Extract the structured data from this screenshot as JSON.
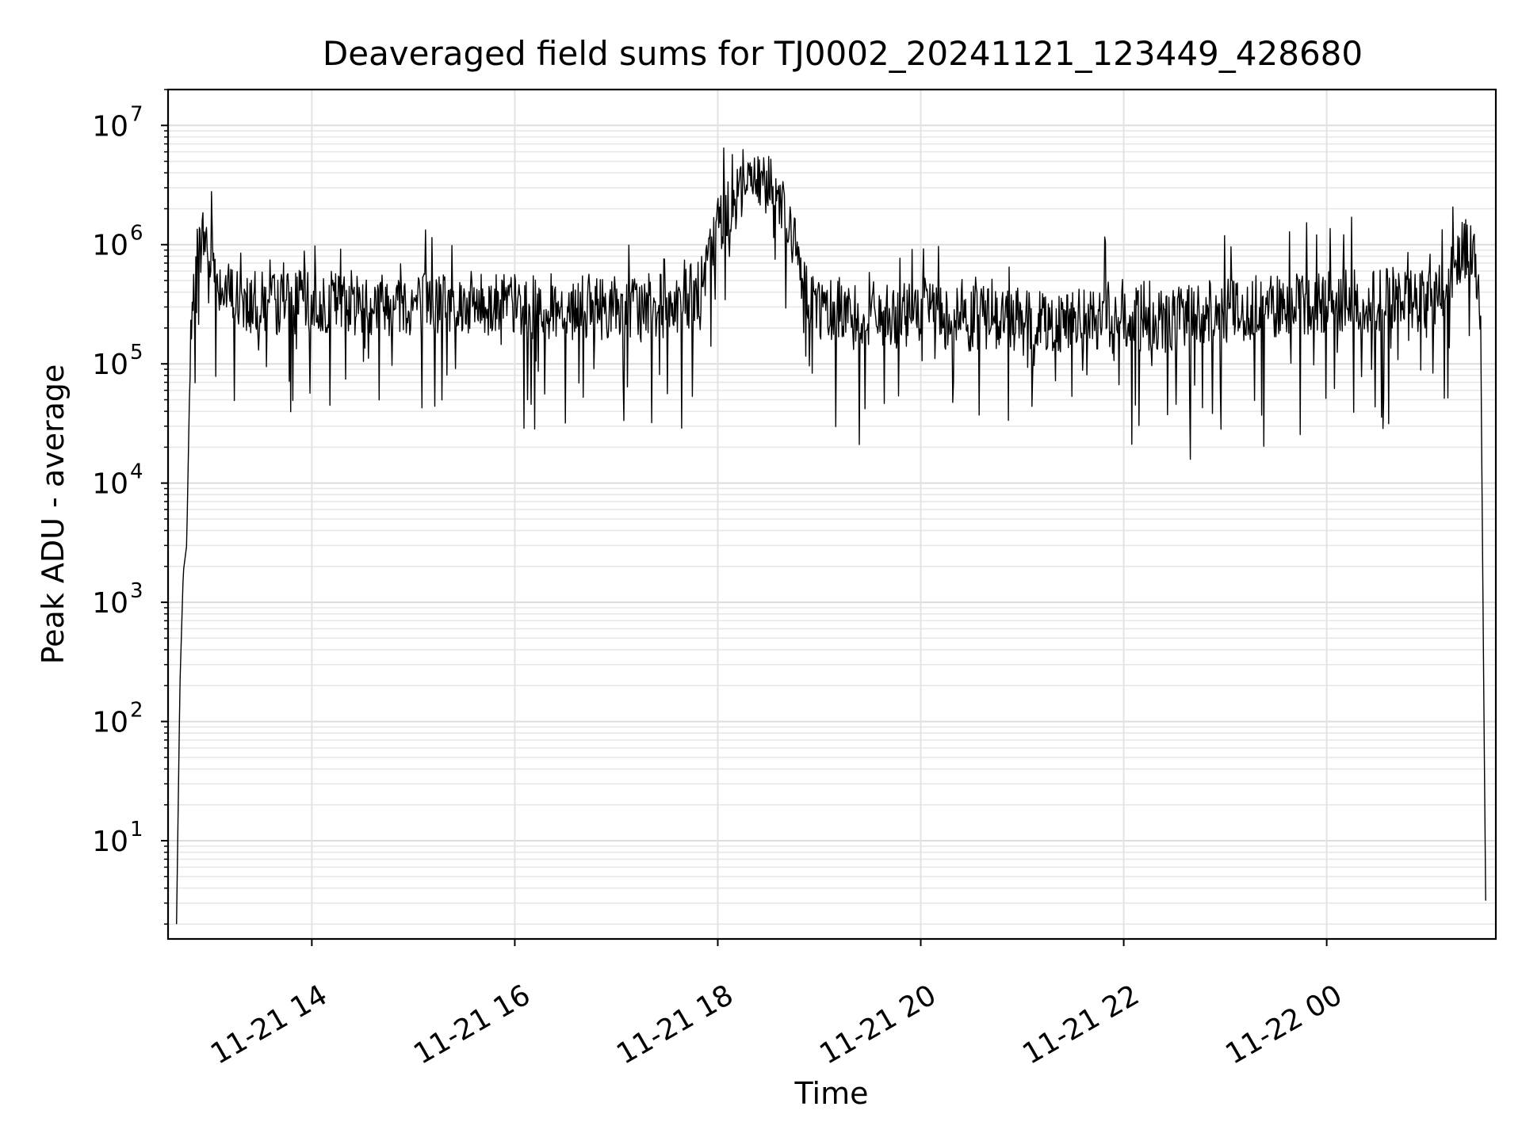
{
  "chart_data": {
    "type": "line",
    "title": "Deaveraged field sums for TJ0002_20241121_123449_428680",
    "xlabel": "Time",
    "ylabel": "Peak ADU - average",
    "yscale": "log",
    "ylim": [
      1.5,
      20000000
    ],
    "xlim": [
      "2024-11-21T12:35",
      "2024-11-22T01:40"
    ],
    "grid": true,
    "legend": "none",
    "line_color": "#000000",
    "x_ticks": [
      {
        "value": "2024-11-21T14:00",
        "label": "11-21 14"
      },
      {
        "value": "2024-11-21T16:00",
        "label": "11-21 16"
      },
      {
        "value": "2024-11-21T18:00",
        "label": "11-21 18"
      },
      {
        "value": "2024-11-21T20:00",
        "label": "11-21 20"
      },
      {
        "value": "2024-11-21T22:00",
        "label": "11-21 22"
      },
      {
        "value": "2024-11-22T00:00",
        "label": "11-22 00"
      }
    ],
    "y_ticks": [
      {
        "value": 10,
        "base": "10",
        "exp": "1"
      },
      {
        "value": 100,
        "base": "10",
        "exp": "2"
      },
      {
        "value": 1000,
        "base": "10",
        "exp": "3"
      },
      {
        "value": 10000,
        "base": "10",
        "exp": "4"
      },
      {
        "value": 100000,
        "base": "10",
        "exp": "5"
      },
      {
        "value": 1000000,
        "base": "10",
        "exp": "6"
      },
      {
        "value": 10000000,
        "base": "10",
        "exp": "7"
      }
    ],
    "series": [
      {
        "x": [
          "2024-11-21T12:40",
          "2024-11-21T12:42",
          "2024-11-21T12:44",
          "2024-11-21T12:46",
          "2024-11-21T12:48",
          "2024-11-21T12:52",
          "2024-11-21T12:56",
          "2024-11-21T13:00",
          "2024-11-21T13:05",
          "2024-11-21T13:10",
          "2024-11-21T13:15",
          "2024-11-21T13:20",
          "2024-11-21T13:30",
          "2024-11-21T13:45",
          "2024-11-21T14:00",
          "2024-11-21T14:30",
          "2024-11-21T15:00",
          "2024-11-21T15:30",
          "2024-11-21T16:00",
          "2024-11-21T16:30",
          "2024-11-21T17:00",
          "2024-11-21T17:30",
          "2024-11-21T17:50",
          "2024-11-21T18:00",
          "2024-11-21T18:15",
          "2024-11-21T18:30",
          "2024-11-21T18:40",
          "2024-11-21T18:50",
          "2024-11-21T19:00",
          "2024-11-21T19:30",
          "2024-11-21T20:00",
          "2024-11-21T20:35",
          "2024-11-21T21:00",
          "2024-11-21T21:30",
          "2024-11-21T22:00",
          "2024-11-21T22:30",
          "2024-11-21T23:00",
          "2024-11-21T23:30",
          "2024-11-22T00:00",
          "2024-11-22T00:30",
          "2024-11-22T01:00",
          "2024-11-22T01:10",
          "2024-11-22T01:15",
          "2024-11-22T01:20",
          "2024-11-22T01:25",
          "2024-11-22T01:28",
          "2024-11-22T01:31",
          "2024-11-22T01:33",
          "2024-11-22T01:34"
        ],
        "y": [
          2,
          200,
          1800,
          3000,
          100000,
          800000,
          1200000,
          900000,
          500000,
          400000,
          350000,
          350000,
          320000,
          330000,
          330000,
          330000,
          320000,
          320000,
          310000,
          300000,
          300000,
          310000,
          400000,
          1500000,
          3000000,
          3500000,
          2000000,
          500000,
          300000,
          260000,
          250000,
          240000,
          240000,
          230000,
          230000,
          240000,
          280000,
          300000,
          330000,
          340000,
          350000,
          420000,
          700000,
          950000,
          1000000,
          700000,
          200000,
          100,
          3
        ]
      }
    ]
  }
}
